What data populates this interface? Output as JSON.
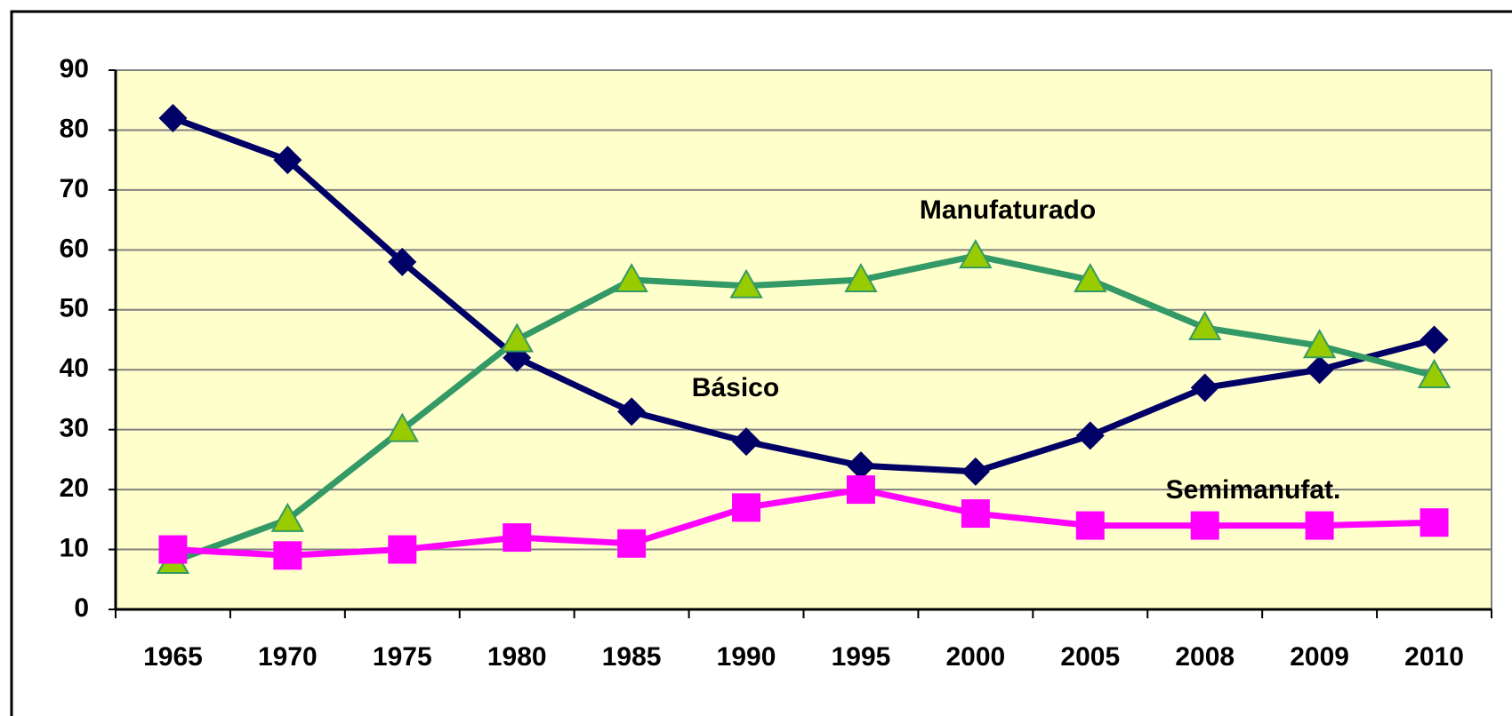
{
  "chart_data": {
    "type": "line",
    "categories": [
      "1965",
      "1970",
      "1975",
      "1980",
      "1985",
      "1990",
      "1995",
      "2000",
      "2005",
      "2008",
      "2009",
      "2010"
    ],
    "series": [
      {
        "name": "Básico",
        "color": "#000066",
        "marker": "diamond",
        "values": [
          82,
          75,
          58,
          42,
          33,
          28,
          24,
          23,
          29,
          37,
          40,
          45
        ]
      },
      {
        "name": "Manufaturado",
        "color": "#339966",
        "marker": "triangle",
        "marker_color": "#99cc00",
        "values": [
          8,
          15,
          30,
          45,
          55,
          54,
          55,
          59,
          55,
          47,
          44,
          39
        ]
      },
      {
        "name": "Semimanufat.",
        "color": "#ff00ff",
        "marker": "square",
        "values": [
          10,
          9,
          10,
          12,
          11,
          17,
          20,
          16,
          14,
          14,
          14,
          14.5
        ]
      }
    ],
    "ylim": [
      0,
      90
    ],
    "yticks": [
      0,
      10,
      20,
      30,
      40,
      50,
      60,
      70,
      80,
      90
    ],
    "grid": true
  }
}
